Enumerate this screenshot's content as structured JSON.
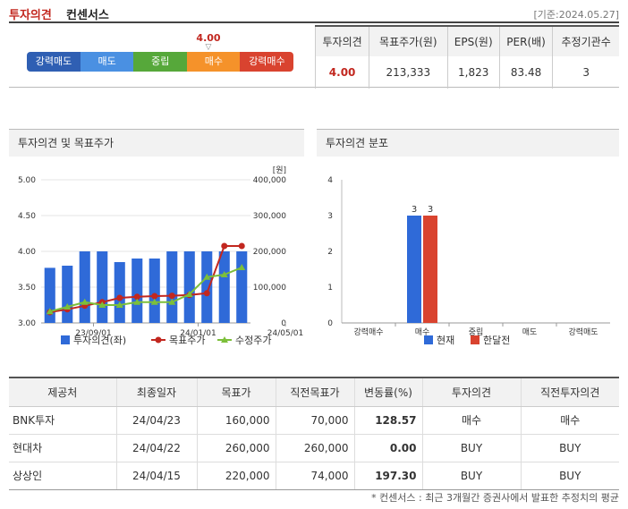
{
  "header": {
    "title_red": "투자의견",
    "title_black": "컨센서스",
    "as_of": "[기준:2024.05.27]"
  },
  "consensus": {
    "scale": [
      {
        "label": "강력매도",
        "color": "#2f5fb3"
      },
      {
        "label": "매도",
        "color": "#4a90e2"
      },
      {
        "label": "중립",
        "color": "#56a83a"
      },
      {
        "label": "매수",
        "color": "#f5922a"
      },
      {
        "label": "강력매수",
        "color": "#d9432f"
      }
    ],
    "marker_value": "4.00",
    "table_headers": [
      "투자의견",
      "목표주가(원)",
      "EPS(원)",
      "PER(배)",
      "추정기관수"
    ],
    "table_values": [
      "4.00",
      "213,333",
      "1,823",
      "83.48",
      "3"
    ]
  },
  "chart_opinion": {
    "title": "투자의견 및 목표주가",
    "chart_data": {
      "type": "bar",
      "y_left_ticks": [
        "5.00",
        "4.50",
        "4.00",
        "3.50",
        "3.00"
      ],
      "y_left_range": [
        3.0,
        5.0
      ],
      "y_right_unit": "[원]",
      "y_right_ticks": [
        "400,000",
        "300,000",
        "200,000",
        "100,000",
        "0"
      ],
      "y_right_range": [
        0,
        400000
      ],
      "x_tick_labels": [
        "23/09/01",
        "24/01/01",
        "24/05/01"
      ],
      "x_tick_positions": [
        3,
        9,
        14
      ],
      "series": [
        {
          "name": "투자의견(좌)",
          "kind": "bar",
          "color": "#2f6ad8",
          "values": [
            3.77,
            3.8,
            4.0,
            4.0,
            3.85,
            3.9,
            3.9,
            4.0,
            4.0,
            4.0,
            4.0,
            4.0
          ]
        },
        {
          "name": "목표주가",
          "kind": "line",
          "color": "#c2271f",
          "values": [
            30000,
            38000,
            48000,
            58000,
            70000,
            73000,
            75000,
            76000,
            78000,
            83000,
            215000,
            215000
          ]
        },
        {
          "name": "수정주가",
          "kind": "line",
          "color": "#7cbf3a",
          "values": [
            32000,
            45000,
            58000,
            50000,
            50000,
            58000,
            58000,
            58000,
            80000,
            128000,
            135000,
            155000
          ]
        }
      ]
    }
  },
  "chart_dist": {
    "title": "투자의견 분포",
    "chart_data": {
      "type": "bar",
      "categories": [
        "강력매수",
        "매수",
        "중립",
        "매도",
        "강력매도"
      ],
      "y_ticks": [
        "4",
        "3",
        "2",
        "1",
        "0"
      ],
      "ylim": [
        0,
        4
      ],
      "series": [
        {
          "name": "현재",
          "color": "#2f6ad8",
          "values": [
            0,
            3,
            0,
            0,
            0
          ]
        },
        {
          "name": "한달전",
          "color": "#d9432f",
          "values": [
            0,
            3,
            0,
            0,
            0
          ]
        }
      ]
    }
  },
  "providers": {
    "headers": [
      "제공처",
      "최종일자",
      "목표가",
      "직전목표가",
      "변동률(%)",
      "투자의견",
      "직전투자의견"
    ],
    "rows": [
      [
        "BNK투자",
        "24/04/23",
        "160,000",
        "70,000",
        "128.57",
        "매수",
        "매수"
      ],
      [
        "현대차",
        "24/04/22",
        "260,000",
        "260,000",
        "0.00",
        "BUY",
        "BUY"
      ],
      [
        "상상인",
        "24/04/15",
        "220,000",
        "74,000",
        "197.30",
        "BUY",
        "BUY"
      ]
    ],
    "footnote": "* 컨센서스 : 최근 3개월간 증권사에서 발표한 추정치의 평균"
  }
}
